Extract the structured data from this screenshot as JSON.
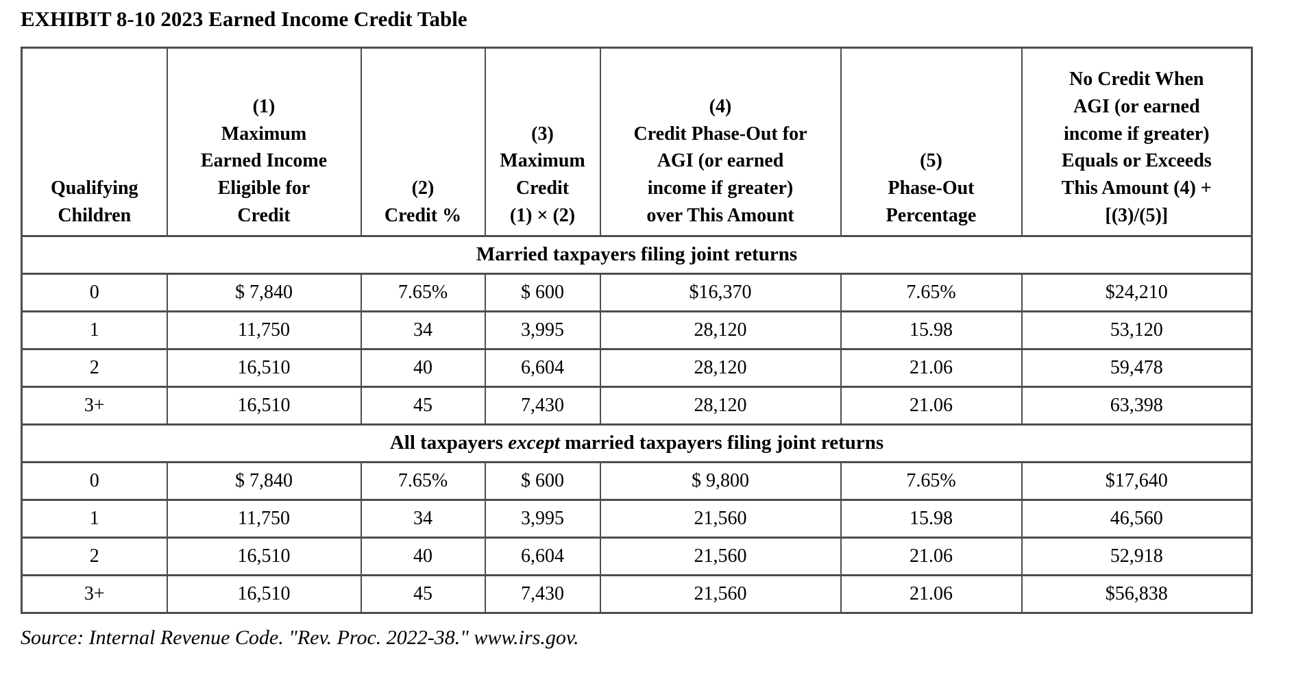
{
  "title": "EXHIBIT 8-10 2023 Earned Income Credit Table",
  "table": {
    "columns": [
      {
        "label": "Qualifying\nChildren"
      },
      {
        "label": "(1)\nMaximum\nEarned Income\nEligible for\nCredit"
      },
      {
        "label": "(2)\nCredit %"
      },
      {
        "label": "(3)\nMaximum\nCredit\n(1) × (2)"
      },
      {
        "label": "(4)\nCredit Phase-Out for\nAGI (or earned\nincome if greater)\nover This Amount"
      },
      {
        "label": "(5)\nPhase-Out\nPercentage"
      },
      {
        "label": "No Credit When\nAGI (or earned\nincome if greater)\nEquals or Exceeds\nThis Amount (4) +\n[(3)/(5)]"
      }
    ],
    "sections": [
      {
        "header": {
          "before": "Married taxpayers filing joint returns",
          "italic": "",
          "after": ""
        },
        "rows": [
          [
            "0",
            "$ 7,840",
            "7.65%",
            "$ 600",
            "$16,370",
            "7.65%",
            "$24,210"
          ],
          [
            "1",
            "11,750",
            "34",
            "3,995",
            "28,120",
            "15.98",
            "53,120"
          ],
          [
            "2",
            "16,510",
            "40",
            "6,604",
            "28,120",
            "21.06",
            "59,478"
          ],
          [
            "3+",
            "16,510",
            "45",
            "7,430",
            "28,120",
            "21.06",
            "63,398"
          ]
        ]
      },
      {
        "header": {
          "before": "All taxpayers ",
          "italic": "except",
          "after": " married taxpayers filing joint returns"
        },
        "rows": [
          [
            "0",
            "$ 7,840",
            "7.65%",
            "$ 600",
            "$ 9,800",
            "7.65%",
            "$17,640"
          ],
          [
            "1",
            "11,750",
            "34",
            "3,995",
            "21,560",
            "15.98",
            "46,560"
          ],
          [
            "2",
            "16,510",
            "40",
            "6,604",
            "21,560",
            "21.06",
            "52,918"
          ],
          [
            "3+",
            "16,510",
            "45",
            "7,430",
            "21,560",
            "21.06",
            "$56,838"
          ]
        ]
      }
    ]
  },
  "source": "Source: Internal Revenue Code. \"Rev. Proc. 2022-38.\" www.irs.gov."
}
